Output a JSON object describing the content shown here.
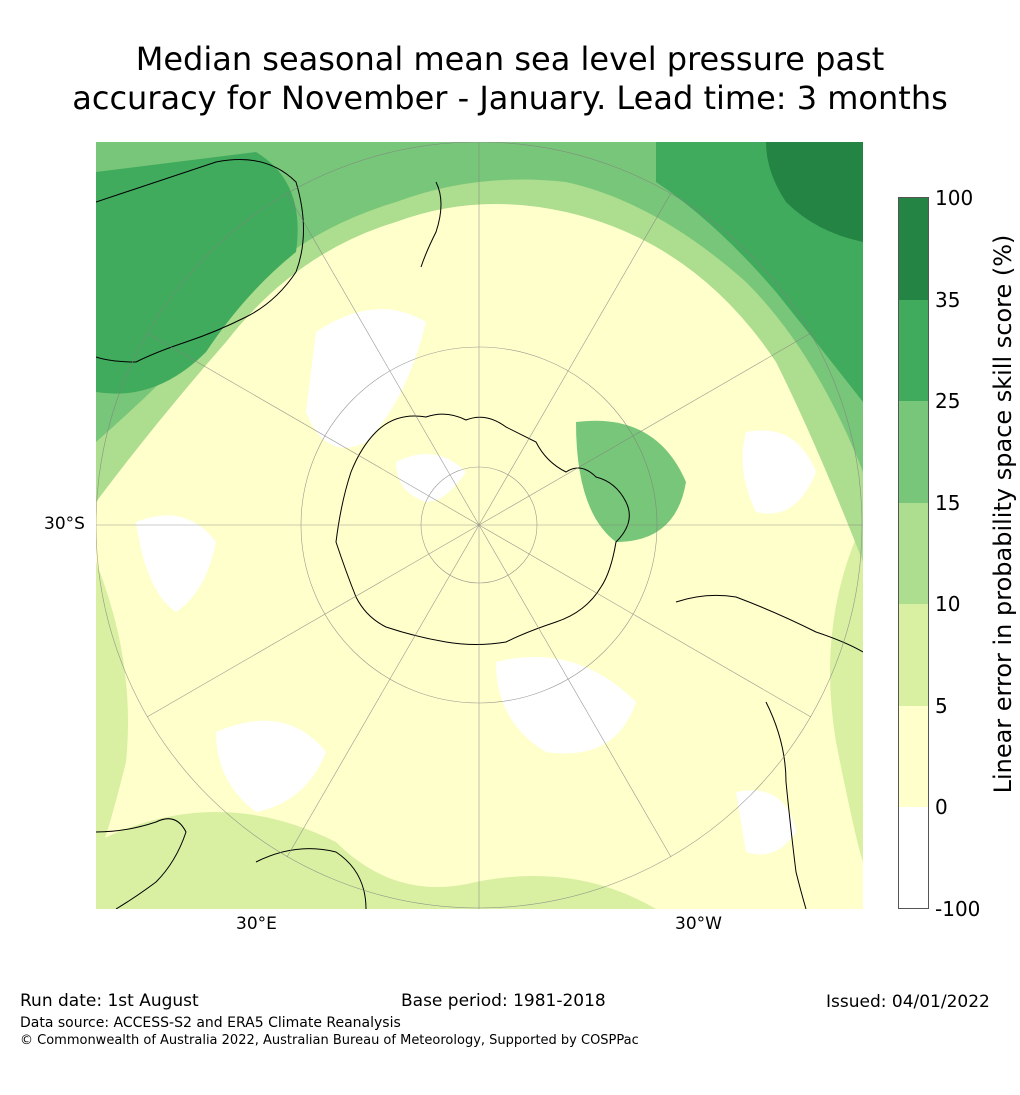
{
  "title": {
    "line1": "Median seasonal mean sea level pressure past",
    "line2": "accuracy for November - January. Lead time: 3 months"
  },
  "map": {
    "latitude_label": "30°S",
    "longitude_labels": {
      "east": "30°E",
      "west": "30°W"
    },
    "projection": "south-polar-stereographic",
    "colors": {
      "below_0": "#ffffff",
      "0_5": "#ffffcc",
      "5_10": "#d9f0a3",
      "10_15": "#addd8e",
      "15_25": "#78c679",
      "25_35": "#41ab5d",
      "35_100": "#238443",
      "coastline": "#000000",
      "graticule": "#808080"
    }
  },
  "colorbar": {
    "label": "Linear error in probability space skill score (%)",
    "ticks": [
      "100",
      "35",
      "25",
      "15",
      "10",
      "5",
      "0",
      "-100"
    ],
    "bins": [
      {
        "range": "35 to 100",
        "color": "#238443"
      },
      {
        "range": "25 to 35",
        "color": "#41ab5d"
      },
      {
        "range": "15 to 25",
        "color": "#78c679"
      },
      {
        "range": "10 to 15",
        "color": "#addd8e"
      },
      {
        "range": "5 to 10",
        "color": "#d9f0a3"
      },
      {
        "range": "0 to 5",
        "color": "#ffffcc"
      },
      {
        "range": "-100 to 0",
        "color": "#ffffff"
      }
    ]
  },
  "footer": {
    "run_date": "Run date: 1st August",
    "base_period": "Base period: 1981-2018",
    "issued": "Issued: 04/01/2022",
    "data_source": "Data source: ACCESS-S2 and ERA5 Climate Reanalysis",
    "copyright": "© Commonwealth of Australia 2022, Australian Bureau of Meteorology, Supported by COSPPac"
  }
}
